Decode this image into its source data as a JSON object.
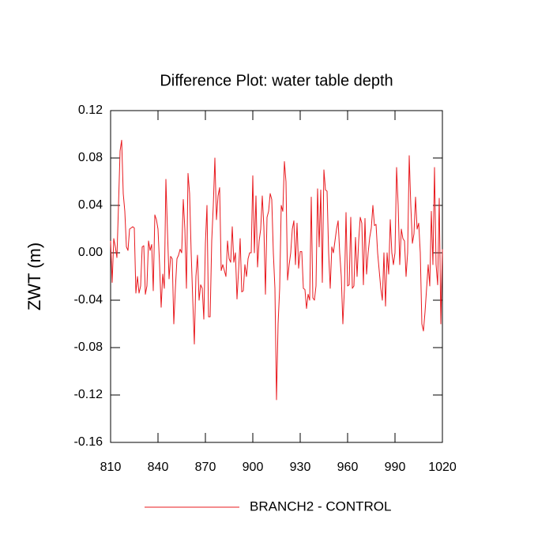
{
  "chart_data": {
    "type": "line",
    "title": "Difference Plot: water table depth",
    "y_label": "ZWT  (m)",
    "x": [
      810,
      811,
      812,
      813,
      814,
      815,
      816,
      817,
      818,
      819,
      820,
      821,
      822,
      823,
      824,
      825,
      826,
      827,
      828,
      829,
      830,
      831,
      832,
      833,
      834,
      835,
      836,
      837,
      838,
      839,
      840,
      841,
      842,
      843,
      844,
      845,
      846,
      847,
      848,
      849,
      850,
      851,
      852,
      853,
      854,
      855,
      856,
      857,
      858,
      859,
      860,
      861,
      862,
      863,
      864,
      865,
      866,
      867,
      868,
      869,
      870,
      871,
      872,
      873,
      874,
      875,
      876,
      877,
      878,
      879,
      880,
      881,
      882,
      883,
      884,
      885,
      886,
      887,
      888,
      889,
      890,
      891,
      892,
      893,
      894,
      895,
      896,
      897,
      898,
      899,
      900,
      901,
      902,
      903,
      904,
      905,
      906,
      907,
      908,
      909,
      910,
      911,
      912,
      913,
      914,
      915,
      916,
      917,
      918,
      919,
      920,
      921,
      922,
      923,
      924,
      925,
      926,
      927,
      928,
      929,
      930,
      931,
      932,
      933,
      934,
      935,
      936,
      937,
      938,
      939,
      940,
      941,
      942,
      943,
      944,
      945,
      946,
      947,
      948,
      949,
      950,
      951,
      952,
      953,
      954,
      955,
      956,
      957,
      958,
      959,
      960,
      961,
      962,
      963,
      964,
      965,
      966,
      967,
      968,
      969,
      970,
      971,
      972,
      973,
      974,
      975,
      976,
      977,
      978,
      979,
      980,
      981,
      982,
      983,
      984,
      985,
      986,
      987,
      988,
      989,
      990,
      991,
      992,
      993,
      994,
      995,
      996,
      997,
      998,
      999,
      1000,
      1001,
      1002,
      1003,
      1004,
      1005,
      1006,
      1007,
      1008,
      1009,
      1010,
      1011,
      1012,
      1013,
      1014,
      1015,
      1016,
      1017,
      1018,
      1019,
      1020
    ],
    "series": [
      {
        "name": "BRANCH2 - CONTROL",
        "color": "#e8191e",
        "values": [
          0.01,
          -0.025,
          0.012,
          0.005,
          -0.004,
          0.04,
          0.086,
          0.095,
          0.05,
          0.035,
          0.005,
          0.002,
          0.02,
          0.021,
          0.022,
          0.021,
          -0.034,
          -0.02,
          -0.034,
          -0.028,
          0.005,
          0.006,
          -0.035,
          -0.028,
          0.01,
          0.002,
          0.007,
          -0.032,
          0.032,
          0.028,
          0.02,
          -0.01,
          -0.046,
          -0.018,
          -0.03,
          0.062,
          0.018,
          -0.022,
          -0.003,
          -0.005,
          -0.06,
          -0.03,
          -0.005,
          -0.002,
          0.003,
          0,
          0.045,
          0.02,
          -0.03,
          0.067,
          0.05,
          0,
          -0.04,
          -0.077,
          -0.02,
          -0.002,
          -0.04,
          -0.027,
          -0.03,
          -0.056,
          0.008,
          0.04,
          -0.054,
          -0.054,
          0.01,
          0.04,
          0.08,
          0.028,
          0.048,
          0.055,
          -0.015,
          -0.01,
          -0.015,
          -0.02,
          0.01,
          -0.005,
          -0.008,
          0.022,
          -0.008,
          0,
          -0.039,
          -0.015,
          0.012,
          -0.033,
          -0.032,
          -0.01,
          -0.02,
          -0.005,
          0,
          0,
          0.065,
          0,
          0.048,
          -0.012,
          0.01,
          0.02,
          0.048,
          0.022,
          -0.035,
          0.03,
          0.035,
          0.05,
          0.045,
          0,
          -0.03,
          -0.124,
          -0.06,
          -0.03,
          0.04,
          0.035,
          0.077,
          0.06,
          -0.023,
          -0.01,
          0,
          0.02,
          0.027,
          -0.01,
          0.025,
          -0.013,
          0.001,
          0.001,
          -0.03,
          -0.031,
          -0.047,
          -0.035,
          -0.04,
          0.047,
          -0.038,
          -0.04,
          -0.028,
          0.054,
          0.005,
          0.053,
          -0.025,
          0.07,
          0.053,
          0.052,
          0,
          -0.03,
          0.005,
          0,
          0.01,
          0.02,
          0.027,
          0,
          -0.02,
          -0.06,
          -0.03,
          0.034,
          -0.028,
          -0.027,
          0.03,
          -0.03,
          -0.028,
          0.013,
          -0.02,
          0.01,
          0.03,
          0.025,
          -0.027,
          0.029,
          -0.018,
          0,
          0.013,
          0.021,
          0.04,
          0.023,
          0.024,
          0,
          -0.015,
          -0.03,
          -0.04,
          0,
          -0.045,
          0,
          -0.018,
          0.028,
          0,
          -0.01,
          0,
          0.072,
          0.04,
          -0.01,
          0.02,
          0.012,
          0.01,
          -0.02,
          0,
          0.082,
          0.04,
          0.008,
          0.016,
          0.047,
          0.02,
          0.025,
          0,
          -0.06,
          -0.066,
          -0.05,
          -0.03,
          -0.01,
          -0.028,
          0.035,
          -0.01,
          0.072,
          -0.01,
          -0.027,
          0.046,
          -0.06,
          0.003
        ]
      }
    ],
    "xlim": [
      810,
      1020
    ],
    "xticks": [
      810,
      840,
      870,
      900,
      930,
      960,
      990,
      1020
    ],
    "ylim": [
      -0.16,
      0.12
    ],
    "yticks": [
      0.12,
      0.08,
      0.04,
      {
        "value": 0,
        "label": "0.00"
      },
      -0.04,
      -0.08,
      -0.12,
      -0.16
    ],
    "grid": false,
    "legend": "bottom"
  }
}
